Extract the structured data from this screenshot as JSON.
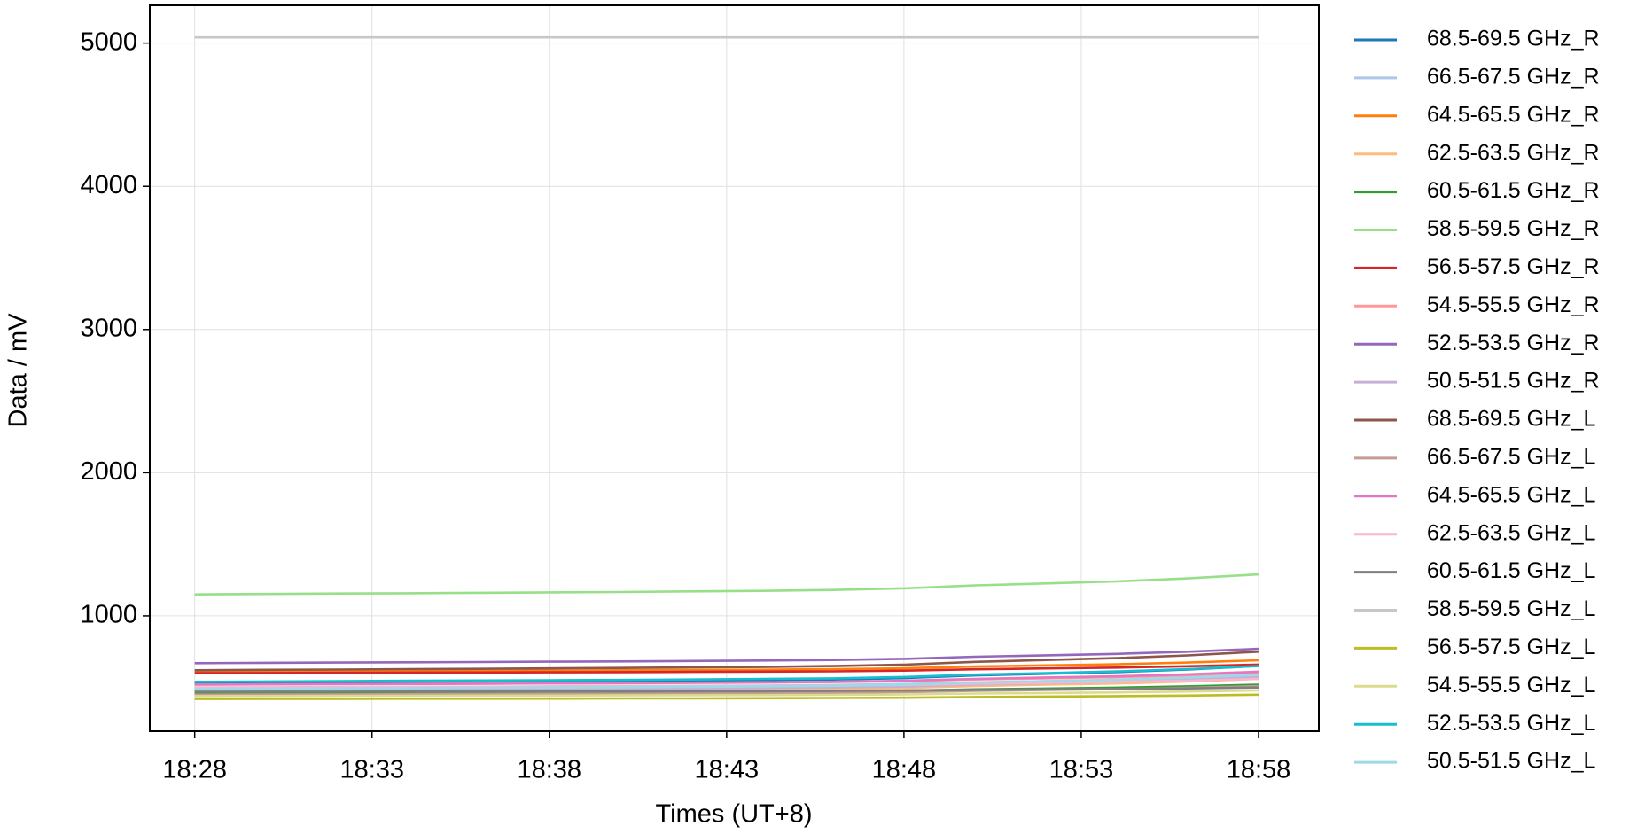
{
  "chart_data": {
    "type": "line",
    "x_label": "Times (UT+8)",
    "y_label": "Data / mV",
    "x": [
      "18:28",
      "18:30",
      "18:32",
      "18:34",
      "18:36",
      "18:38",
      "18:40",
      "18:42",
      "18:44",
      "18:46",
      "18:48",
      "18:50",
      "18:52",
      "18:54",
      "18:56",
      "18:58"
    ],
    "xlim": [
      "18:26:44",
      "18:59:42"
    ],
    "xticks": [
      "18:28",
      "18:33",
      "18:38",
      "18:43",
      "18:48",
      "18:53",
      "18:58"
    ],
    "ylim": [
      195,
      5264
    ],
    "yticks": [
      1000,
      2000,
      3000,
      4000,
      5000
    ],
    "grid": true,
    "legend": "outside-right",
    "series": [
      {
        "name": "68.5-69.5 GHz_R",
        "color": "#1f77b4",
        "values": [
          530,
          532,
          535,
          537,
          540,
          542,
          544,
          548,
          552,
          556,
          566,
          584,
          596,
          608,
          626,
          650
        ]
      },
      {
        "name": "66.5-67.5 GHz_R",
        "color": "#aec7e8",
        "values": [
          500,
          502,
          503,
          505,
          506,
          508,
          510,
          512,
          514,
          518,
          524,
          536,
          544,
          552,
          564,
          580
        ]
      },
      {
        "name": "64.5-65.5 GHz_R",
        "color": "#ff7f0e",
        "values": [
          610,
          612,
          613,
          615,
          616,
          618,
          620,
          622,
          624,
          628,
          634,
          646,
          654,
          662,
          674,
          690
        ]
      },
      {
        "name": "62.5-63.5 GHz_R",
        "color": "#ffbb78",
        "values": [
          470,
          472,
          474,
          475,
          477,
          479,
          481,
          484,
          486,
          490,
          497,
          510,
          520,
          528,
          542,
          560
        ]
      },
      {
        "name": "60.5-61.5 GHz_R",
        "color": "#2ca02c",
        "values": [
          460,
          461,
          462,
          464,
          465,
          466,
          467,
          469,
          471,
          473,
          478,
          487,
          493,
          499,
          508,
          520
        ]
      },
      {
        "name": "58.5-59.5 GHz_R",
        "color": "#98df8a",
        "values": [
          1150,
          1153,
          1156,
          1158,
          1161,
          1164,
          1167,
          1171,
          1175,
          1181,
          1192,
          1213,
          1227,
          1241,
          1262,
          1290
        ]
      },
      {
        "name": "56.5-57.5 GHz_R",
        "color": "#d62728",
        "values": [
          600,
          601,
          602,
          604,
          605,
          606,
          607,
          609,
          611,
          613,
          618,
          627,
          633,
          639,
          648,
          660
        ]
      },
      {
        "name": "54.5-55.5 GHz_R",
        "color": "#ff9896",
        "values": [
          520,
          522,
          523,
          525,
          526,
          528,
          530,
          532,
          534,
          538,
          544,
          556,
          564,
          572,
          584,
          600
        ]
      },
      {
        "name": "52.5-53.5 GHz_R",
        "color": "#9467bd",
        "values": [
          670,
          672,
          674,
          676,
          678,
          680,
          682,
          685,
          688,
          692,
          700,
          715,
          725,
          735,
          750,
          770
        ]
      },
      {
        "name": "50.5-51.5 GHz_R",
        "color": "#c5b0d5",
        "values": [
          480,
          482,
          484,
          485,
          487,
          489,
          491,
          494,
          496,
          500,
          507,
          520,
          530,
          538,
          552,
          570
        ]
      },
      {
        "name": "68.5-69.5 GHz_L",
        "color": "#8c564b",
        "values": [
          620,
          623,
          625,
          628,
          630,
          633,
          636,
          640,
          643,
          649,
          659,
          679,
          692,
          705,
          724,
          750
        ]
      },
      {
        "name": "66.5-67.5 GHz_L",
        "color": "#c49c94",
        "values": [
          450,
          451,
          452,
          454,
          455,
          456,
          457,
          459,
          461,
          463,
          468,
          477,
          483,
          489,
          498,
          510
        ]
      },
      {
        "name": "64.5-65.5 GHz_L",
        "color": "#e377c2",
        "values": [
          520,
          522,
          524,
          525,
          527,
          529,
          531,
          534,
          536,
          540,
          547,
          560,
          570,
          578,
          592,
          610
        ]
      },
      {
        "name": "62.5-63.5 GHz_L",
        "color": "#f7b6d2",
        "values": [
          500,
          501,
          502,
          504,
          505,
          506,
          507,
          509,
          511,
          513,
          518,
          527,
          533,
          539,
          548,
          560
        ]
      },
      {
        "name": "60.5-61.5 GHz_L",
        "color": "#7f7f7f",
        "values": [
          470,
          471,
          471,
          472,
          472,
          473,
          474,
          474,
          475,
          477,
          479,
          484,
          487,
          490,
          494,
          500
        ]
      },
      {
        "name": "58.5-59.5 GHz_L",
        "color": "#c7c7c7",
        "values": [
          5040,
          5040,
          5040,
          5040,
          5040,
          5040,
          5040,
          5040,
          5040,
          5040,
          5040,
          5040,
          5040,
          5040,
          5040,
          5040
        ]
      },
      {
        "name": "56.5-57.5 GHz_L",
        "color": "#bcbd22",
        "values": [
          420,
          421,
          421,
          422,
          422,
          423,
          424,
          424,
          425,
          427,
          429,
          434,
          437,
          440,
          444,
          450
        ]
      },
      {
        "name": "54.5-55.5 GHz_L",
        "color": "#dbdb8d",
        "values": [
          440,
          441,
          442,
          442,
          443,
          444,
          445,
          446,
          447,
          449,
          452,
          458,
          462,
          466,
          472,
          480
        ]
      },
      {
        "name": "52.5-53.5 GHz_L",
        "color": "#17becf",
        "values": [
          540,
          542,
          544,
          547,
          549,
          551,
          553,
          556,
          560,
          564,
          573,
          590,
          600,
          612,
          628,
          650
        ]
      },
      {
        "name": "50.5-51.5 GHz_L",
        "color": "#9edae5",
        "values": [
          490,
          492,
          494,
          496,
          498,
          500,
          502,
          505,
          508,
          512,
          520,
          535,
          545,
          555,
          570,
          590
        ]
      }
    ]
  }
}
